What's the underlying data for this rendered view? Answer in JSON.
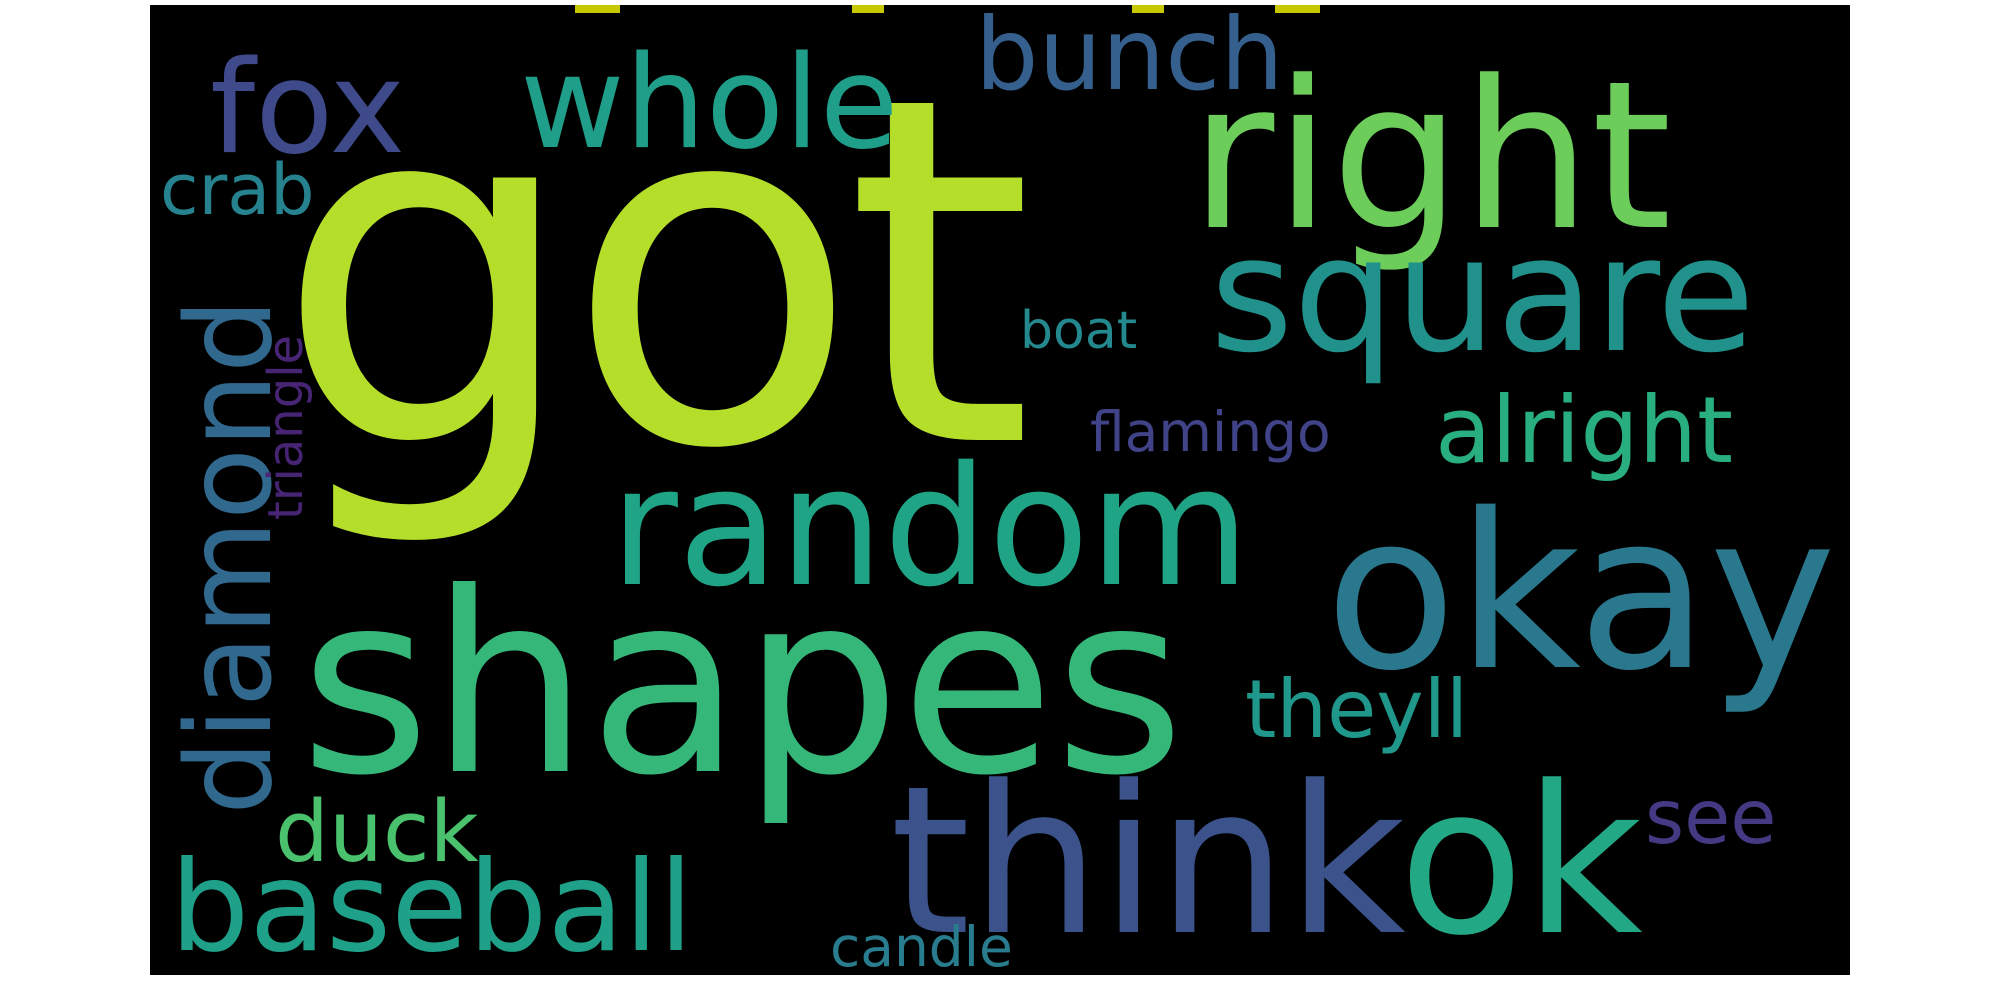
{
  "words": {
    "got": {
      "text": "got",
      "color": "#b5de2b"
    },
    "right": {
      "text": "right",
      "color": "#6ccd5a"
    },
    "shapes": {
      "text": "shapes",
      "color": "#35b779"
    },
    "okay": {
      "text": "okay",
      "color": "#2a788e"
    },
    "thinkok": {
      "text": "thinkok",
      "color": "#3b528b",
      "color_ok": "#22a884"
    },
    "square": {
      "text": "square",
      "color": "#21918c"
    },
    "random": {
      "text": "random",
      "color": "#20a486"
    },
    "baseball": {
      "text": "baseball",
      "color": "#1fa088"
    },
    "diamond": {
      "text": "diamond",
      "color": "#31688e"
    },
    "whole": {
      "text": "whole",
      "color": "#1f9e89"
    },
    "fox": {
      "text": "fox",
      "color": "#3e4a89"
    },
    "bunch": {
      "text": "bunch",
      "color": "#355f8d"
    },
    "crab": {
      "text": "crab",
      "color": "#26828e"
    },
    "alright": {
      "text": "alright",
      "color": "#29af7f"
    },
    "theyll": {
      "text": "theyll",
      "color": "#1f988b"
    },
    "duck": {
      "text": "duck",
      "color": "#4ac16d"
    },
    "see": {
      "text": "see",
      "color": "#443983"
    },
    "boat": {
      "text": "boat",
      "color": "#23898e"
    },
    "flamingo": {
      "text": "flamingo",
      "color": "#404387"
    },
    "triangle": {
      "text": "triangle",
      "color": "#482475"
    },
    "candle": {
      "text": "candle",
      "color": "#287c8e"
    }
  },
  "top_fragments_color": "#c8c800"
}
